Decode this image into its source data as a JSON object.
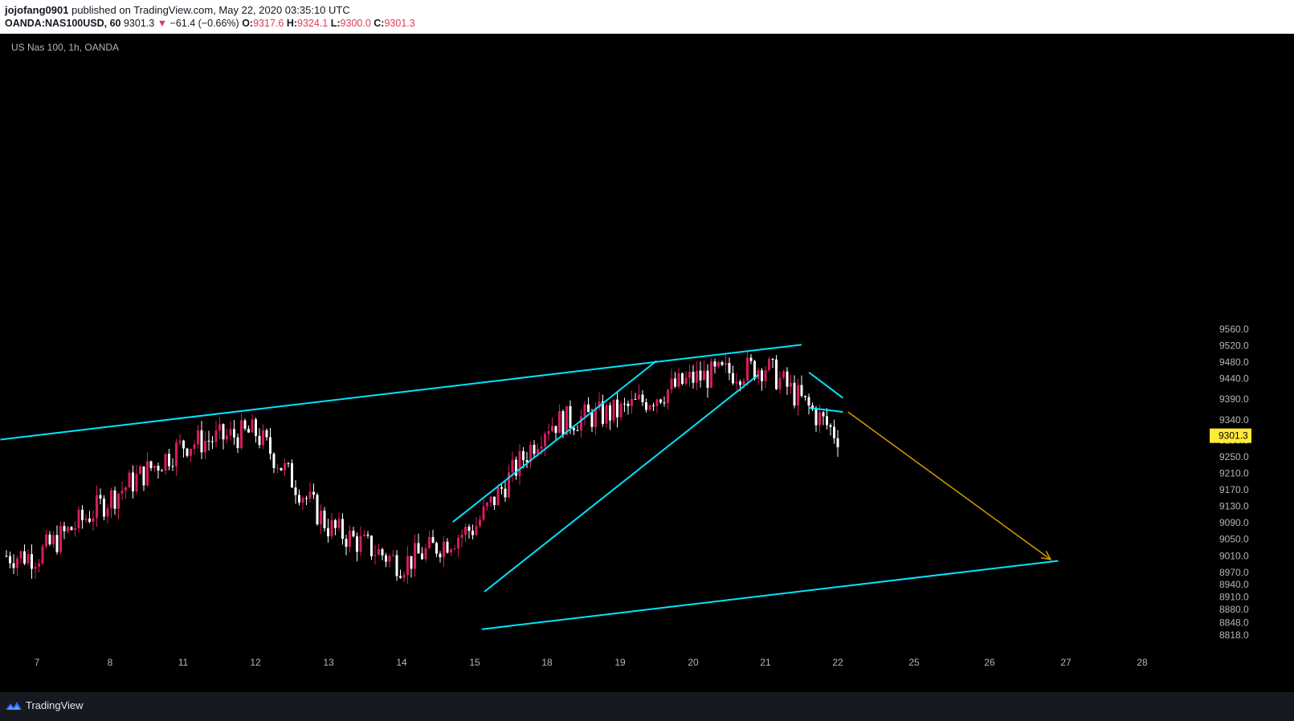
{
  "header": {
    "author": "jojofang0901",
    "published_text": "published on TradingView.com, May 22, 2020 03:35:10 UTC",
    "symbol": "OANDA:NAS100USD, 60",
    "last": "9301.3",
    "change_arrow": "▼",
    "change": "−61.4 (−0.66%)",
    "o_label": "O:",
    "o_value": "9317.6",
    "h_label": "H:",
    "h_value": "9324.1",
    "l_label": "L:",
    "l_value": "9300.0",
    "c_label": "C:",
    "c_value": "9301.3"
  },
  "chart_title": "US Nas 100, 1h, OANDA",
  "footer": {
    "brand": "TradingView",
    "logo_icon": "tradingview-logo-icon"
  },
  "colors": {
    "up": "#d81b60",
    "down": "#ffffff",
    "trendline": "#00e5ff",
    "arrow": "#d19a00",
    "price_label_bg": "#ffeb3b",
    "axis_text": "#b2b5be"
  },
  "chart_data": {
    "type": "candlestick",
    "title": "US Nas 100, 1h, OANDA",
    "ylim": [
      8800,
      9580
    ],
    "y_ticks": [
      9560.0,
      9520.0,
      9480.0,
      9440.0,
      9390.0,
      9340.0,
      9290.0,
      9250.0,
      9210.0,
      9170.0,
      9130.0,
      9090.0,
      9050.0,
      9010.0,
      8970.0,
      8940.0,
      8910.0,
      8880.0,
      8848.0,
      8818.0
    ],
    "x_ticks": [
      "7",
      "8",
      "11",
      "12",
      "13",
      "14",
      "15",
      "18",
      "19",
      "20",
      "21",
      "22",
      "25",
      "26",
      "27",
      "28"
    ],
    "last_price": "9301.3",
    "price_path": [
      {
        "x": "7",
        "y": 9010
      },
      {
        "x": "8",
        "y": 9150
      },
      {
        "x": "11",
        "y": 9280
      },
      {
        "x": "12",
        "y": 9310
      },
      {
        "x": "13",
        "y": 9080
      },
      {
        "x": "14",
        "y": 8990
      },
      {
        "x": "15",
        "y": 9080
      },
      {
        "x": "18",
        "y": 9330
      },
      {
        "x": "19",
        "y": 9360
      },
      {
        "x": "20",
        "y": 9440
      },
      {
        "x": "21",
        "y": 9470
      },
      {
        "x": "22",
        "y": 9301.3
      }
    ],
    "drawings": [
      {
        "type": "trendline",
        "from": {
          "x": "6.5",
          "y": 9292
        },
        "to": {
          "x": "21.5",
          "y": 9522
        }
      },
      {
        "type": "trendline",
        "from": {
          "x": "15.3",
          "y": 8832
        },
        "to": {
          "x": "26.9",
          "y": 8998
        }
      },
      {
        "type": "trendline",
        "from": {
          "x": "14.7",
          "y": 9092
        },
        "to": {
          "x": "19.5",
          "y": 9483
        }
      },
      {
        "type": "trendline",
        "from": {
          "x": "15.4",
          "y": 8923
        },
        "to": {
          "x": "20.9",
          "y": 9449
        }
      },
      {
        "type": "trendline",
        "from": {
          "x": "21.6",
          "y": 9455
        },
        "to": {
          "x": "22.2",
          "y": 9393
        }
      },
      {
        "type": "trendline",
        "from": {
          "x": "21.6",
          "y": 9369
        },
        "to": {
          "x": "22.2",
          "y": 9359
        }
      },
      {
        "type": "arrow",
        "from": {
          "x": "22.4",
          "y": 9359
        },
        "to": {
          "x": "26.8",
          "y": 9001
        }
      }
    ]
  }
}
